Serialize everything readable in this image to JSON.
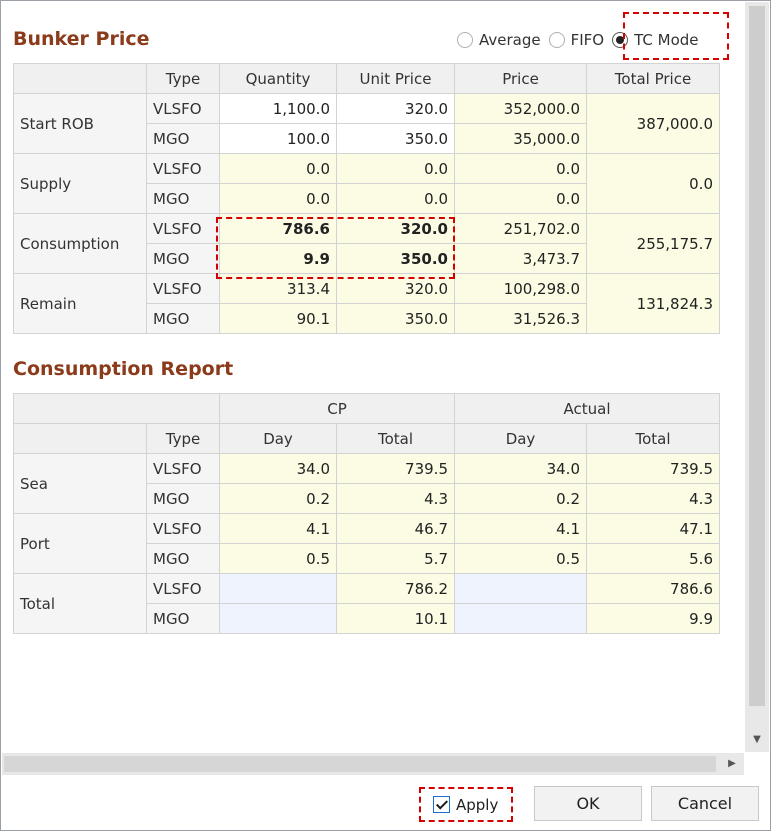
{
  "bunker": {
    "title": "Bunker Price",
    "modes": [
      "Average",
      "FIFO",
      "TC Mode"
    ],
    "selected_mode": "TC Mode",
    "headers": [
      "Type",
      "Quantity",
      "Unit Price",
      "Price",
      "Total Price"
    ],
    "groups": [
      {
        "label": "Start ROB",
        "total": "387,000.0",
        "rows": [
          {
            "type": "VLSFO",
            "quantity": "1,100.0",
            "unit_price": "320.0",
            "price": "352,000.0"
          },
          {
            "type": "MGO",
            "quantity": "100.0",
            "unit_price": "350.0",
            "price": "35,000.0"
          }
        ]
      },
      {
        "label": "Supply",
        "total": "0.0",
        "rows": [
          {
            "type": "VLSFO",
            "quantity": "0.0",
            "unit_price": "0.0",
            "price": "0.0"
          },
          {
            "type": "MGO",
            "quantity": "0.0",
            "unit_price": "0.0",
            "price": "0.0"
          }
        ]
      },
      {
        "label": "Consumption",
        "total": "255,175.7",
        "rows": [
          {
            "type": "VLSFO",
            "quantity": "786.6",
            "unit_price": "320.0",
            "price": "251,702.0"
          },
          {
            "type": "MGO",
            "quantity": "9.9",
            "unit_price": "350.0",
            "price": "3,473.7"
          }
        ]
      },
      {
        "label": "Remain",
        "total": "131,824.3",
        "rows": [
          {
            "type": "VLSFO",
            "quantity": "313.4",
            "unit_price": "320.0",
            "price": "100,298.0"
          },
          {
            "type": "MGO",
            "quantity": "90.1",
            "unit_price": "350.0",
            "price": "31,526.3"
          }
        ]
      }
    ]
  },
  "consumption": {
    "title": "Consumption Report",
    "group_headers": [
      "CP",
      "Actual"
    ],
    "headers": [
      "Type",
      "Day",
      "Total",
      "Day",
      "Total"
    ],
    "groups": [
      {
        "label": "Sea",
        "rows": [
          {
            "type": "VLSFO",
            "cp_day": "34.0",
            "cp_total": "739.5",
            "act_day": "34.0",
            "act_total": "739.5"
          },
          {
            "type": "MGO",
            "cp_day": "0.2",
            "cp_total": "4.3",
            "act_day": "0.2",
            "act_total": "4.3"
          }
        ]
      },
      {
        "label": "Port",
        "rows": [
          {
            "type": "VLSFO",
            "cp_day": "4.1",
            "cp_total": "46.7",
            "act_day": "4.1",
            "act_total": "47.1"
          },
          {
            "type": "MGO",
            "cp_day": "0.5",
            "cp_total": "5.7",
            "act_day": "0.5",
            "act_total": "5.6"
          }
        ]
      },
      {
        "label": "Total",
        "rows": [
          {
            "type": "VLSFO",
            "cp_day": "",
            "cp_total": "786.2",
            "act_day": "",
            "act_total": "786.6"
          },
          {
            "type": "MGO",
            "cp_day": "",
            "cp_total": "10.1",
            "act_day": "",
            "act_total": "9.9"
          }
        ]
      }
    ]
  },
  "footer": {
    "apply_label": "Apply",
    "apply_checked": true,
    "ok_label": "OK",
    "cancel_label": "Cancel"
  },
  "colors": {
    "title": "#8b3a1a",
    "editable_cell": "#fcfce4",
    "empty_cell": "#eef3fd",
    "highlight": "#d40000"
  }
}
